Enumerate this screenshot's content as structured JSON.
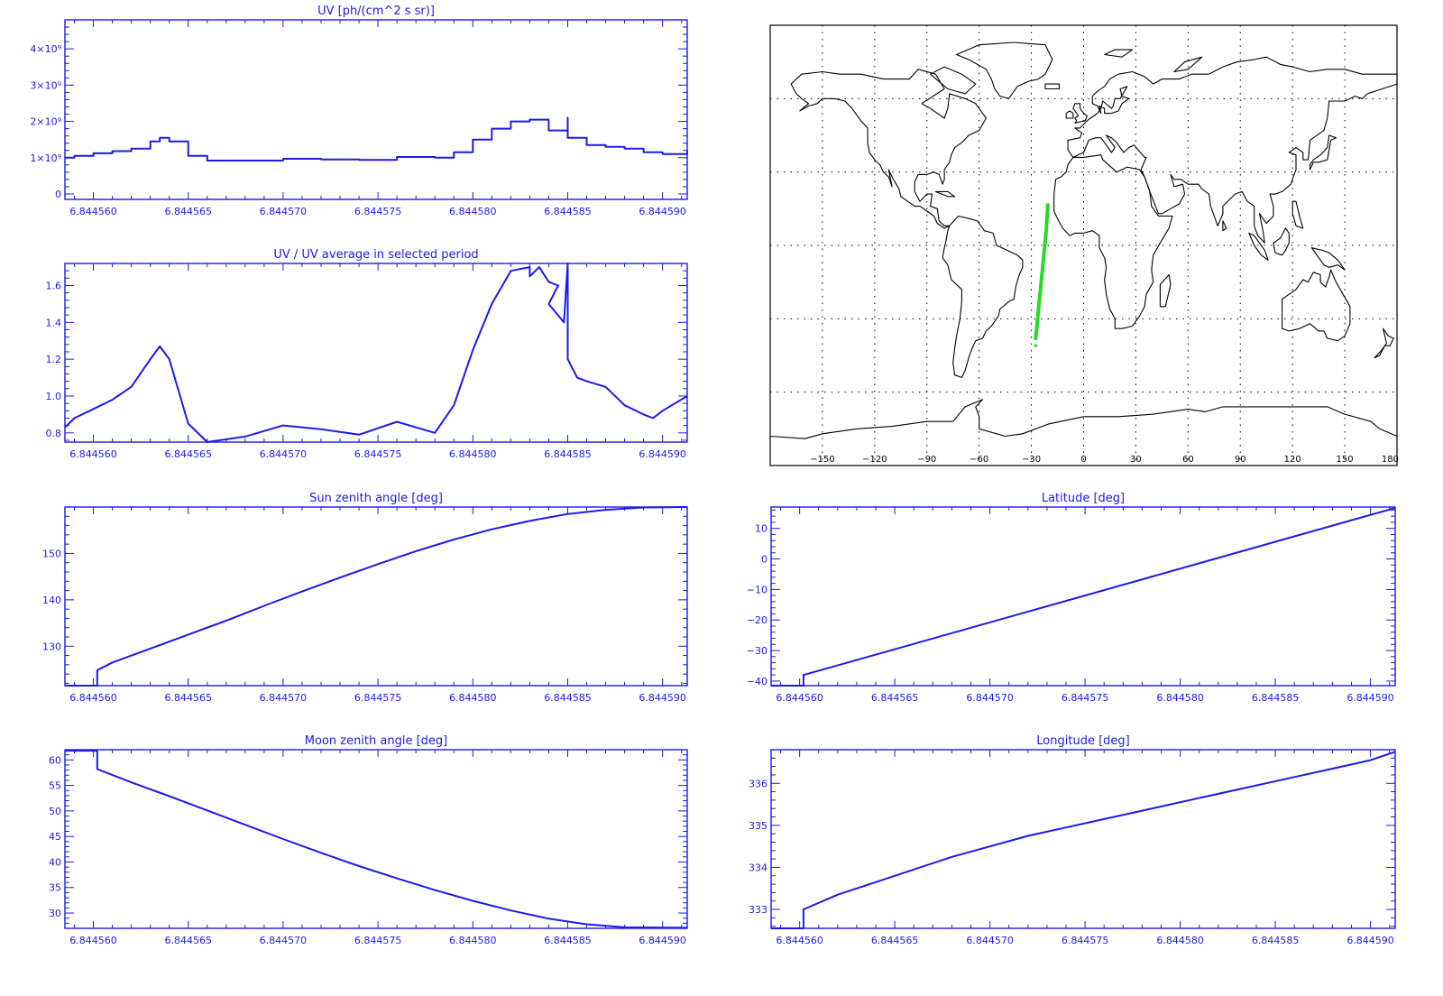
{
  "colors": {
    "plot": "#1a1aee",
    "map_lines": "#000000",
    "track": "#22dd22",
    "background": "#ffffff"
  },
  "chart_data": [
    {
      "id": "uv",
      "type": "line",
      "title": "UV [ph/(cm^2 s sr)]",
      "xlabel": "",
      "ylabel": "",
      "xlim": [
        6.8445585,
        6.8445913
      ],
      "ylim": [
        -150000000.0,
        4800000000.0
      ],
      "xticks": [
        6.84456,
        6.844565,
        6.84457,
        6.844575,
        6.84458,
        6.844585,
        6.84459
      ],
      "xtick_labels": [
        "6.844560",
        "6.844565",
        "6.844570",
        "6.844575",
        "6.844580",
        "6.844585",
        "6.844590"
      ],
      "yticks": [
        0,
        1000000000.0,
        2000000000.0,
        3000000000.0,
        4000000000.0
      ],
      "ytick_labels": [
        "0",
        "1×10⁹",
        "2×10⁹",
        "3×10⁹",
        "4×10⁹"
      ],
      "step": true,
      "x": [
        6.8445585,
        6.844559,
        6.84456,
        6.844561,
        6.844562,
        6.844563,
        6.8445635,
        6.844564,
        6.844565,
        6.844566,
        6.844568,
        6.84457,
        6.844572,
        6.844574,
        6.844576,
        6.844578,
        6.844579,
        6.84458,
        6.844581,
        6.844582,
        6.844583,
        6.844584,
        6.844584,
        6.844585,
        6.844585,
        6.844586,
        6.844587,
        6.844588,
        6.844589,
        6.84459,
        6.8445913
      ],
      "values": [
        1000000000.0,
        1050000000.0,
        1120000000.0,
        1180000000.0,
        1250000000.0,
        1450000000.0,
        1550000000.0,
        1450000000.0,
        1050000000.0,
        920000000.0,
        920000000.0,
        970000000.0,
        950000000.0,
        940000000.0,
        1020000000.0,
        1000000000.0,
        1150000000.0,
        1500000000.0,
        1800000000.0,
        2000000000.0,
        2050000000.0,
        1900000000.0,
        1750000000.0,
        2100000000.0,
        1550000000.0,
        1350000000.0,
        1300000000.0,
        1250000000.0,
        1150000000.0,
        1100000000.0,
        1200000000.0
      ]
    },
    {
      "id": "uvratio",
      "type": "line",
      "title": "UV / UV average in selected period",
      "xlabel": "",
      "ylabel": "",
      "xlim": [
        6.8445585,
        6.8445913
      ],
      "ylim": [
        0.75,
        1.72
      ],
      "xticks": [
        6.84456,
        6.844565,
        6.84457,
        6.844575,
        6.84458,
        6.844585,
        6.84459
      ],
      "xtick_labels": [
        "6.844560",
        "6.844565",
        "6.844570",
        "6.844575",
        "6.844580",
        "6.844585",
        "6.844590"
      ],
      "yticks": [
        0.8,
        1.0,
        1.2,
        1.4,
        1.6
      ],
      "ytick_labels": [
        "0.8",
        "1.0",
        "1.2",
        "1.4",
        "1.6"
      ],
      "step": false,
      "x": [
        6.8445585,
        6.844559,
        6.84456,
        6.844561,
        6.844562,
        6.844563,
        6.8445635,
        6.844564,
        6.844565,
        6.844566,
        6.844568,
        6.84457,
        6.844572,
        6.844574,
        6.844576,
        6.844578,
        6.844579,
        6.84458,
        6.844581,
        6.844582,
        6.844583,
        6.844583,
        6.8445835,
        6.844584,
        6.8445845,
        6.844584,
        6.8445848,
        6.844585,
        6.844585,
        6.844585,
        6.8445855,
        6.844586,
        6.844587,
        6.844588,
        6.844589,
        6.8445895,
        6.84459,
        6.8445913
      ],
      "values": [
        0.83,
        0.88,
        0.93,
        0.98,
        1.05,
        1.2,
        1.27,
        1.2,
        0.85,
        0.75,
        0.78,
        0.84,
        0.82,
        0.79,
        0.86,
        0.8,
        0.95,
        1.25,
        1.5,
        1.68,
        1.7,
        1.65,
        1.7,
        1.62,
        1.6,
        1.5,
        1.4,
        1.72,
        1.3,
        1.2,
        1.1,
        1.08,
        1.05,
        0.95,
        0.9,
        0.88,
        0.92,
        1.0
      ]
    },
    {
      "id": "sza",
      "type": "line",
      "title": "Sun zenith angle [deg]",
      "xlabel": "",
      "ylabel": "",
      "xlim": [
        6.8445585,
        6.8445913
      ],
      "ylim": [
        121.5,
        160
      ],
      "xticks": [
        6.84456,
        6.844565,
        6.84457,
        6.844575,
        6.84458,
        6.844585,
        6.84459
      ],
      "xtick_labels": [
        "6.844560",
        "6.844565",
        "6.844570",
        "6.844575",
        "6.844580",
        "6.844585",
        "6.844590"
      ],
      "yticks": [
        130,
        140,
        150
      ],
      "ytick_labels": [
        "130",
        "140",
        "150"
      ],
      "step": false,
      "x": [
        6.8445585,
        6.8445602,
        6.8445602,
        6.844561,
        6.844563,
        6.844565,
        6.844567,
        6.844569,
        6.844571,
        6.844573,
        6.844575,
        6.844577,
        6.844579,
        6.844581,
        6.844583,
        6.844585,
        6.844587,
        6.844589,
        6.8445913
      ],
      "values": [
        121.5,
        121.5,
        124.8,
        126.5,
        129.5,
        132.5,
        135.5,
        138.7,
        141.8,
        144.8,
        147.7,
        150.5,
        153.0,
        155.2,
        157.0,
        158.5,
        159.4,
        159.9,
        160.0
      ]
    },
    {
      "id": "lat",
      "type": "line",
      "title": "Latitude [deg]",
      "xlabel": "",
      "ylabel": "",
      "xlim": [
        6.8445585,
        6.8445913
      ],
      "ylim": [
        -41.5,
        17
      ],
      "xticks": [
        6.84456,
        6.844565,
        6.84457,
        6.844575,
        6.84458,
        6.844585,
        6.84459
      ],
      "xtick_labels": [
        "6.844560",
        "6.844565",
        "6.844570",
        "6.844575",
        "6.844580",
        "6.844585",
        "6.844590"
      ],
      "yticks": [
        -40,
        -30,
        -20,
        -10,
        0,
        10
      ],
      "ytick_labels": [
        "−40",
        "−30",
        "−20",
        "−10",
        "0",
        "10"
      ],
      "step": false,
      "x": [
        6.8445585,
        6.8445602,
        6.8445602,
        6.8445913
      ],
      "values": [
        -41.5,
        -41.5,
        -38.0,
        16.7
      ]
    },
    {
      "id": "mza",
      "type": "line",
      "title": "Moon zenith angle [deg]",
      "xlabel": "",
      "ylabel": "",
      "xlim": [
        6.8445585,
        6.8445913
      ],
      "ylim": [
        27,
        62
      ],
      "xticks": [
        6.84456,
        6.844565,
        6.84457,
        6.844575,
        6.84458,
        6.844585,
        6.84459
      ],
      "xtick_labels": [
        "6.844560",
        "6.844565",
        "6.844570",
        "6.844575",
        "6.844580",
        "6.844585",
        "6.844590"
      ],
      "yticks": [
        30,
        35,
        40,
        45,
        50,
        55,
        60
      ],
      "ytick_labels": [
        "30",
        "35",
        "40",
        "45",
        "50",
        "55",
        "60"
      ],
      "step": false,
      "x": [
        6.8445585,
        6.8445602,
        6.8445602,
        6.844562,
        6.844564,
        6.844566,
        6.844568,
        6.84457,
        6.844572,
        6.844574,
        6.844576,
        6.844578,
        6.84458,
        6.844582,
        6.844584,
        6.844586,
        6.844588,
        6.8445913
      ],
      "values": [
        61.8,
        61.8,
        58.2,
        55.6,
        52.9,
        50.1,
        47.3,
        44.5,
        41.8,
        39.2,
        36.8,
        34.5,
        32.4,
        30.5,
        28.9,
        27.8,
        27.2,
        27.1
      ]
    },
    {
      "id": "lon",
      "type": "line",
      "title": "Longitude [deg]",
      "xlabel": "",
      "ylabel": "",
      "xlim": [
        6.8445585,
        6.8445913
      ],
      "ylim": [
        332.55,
        336.8
      ],
      "xticks": [
        6.84456,
        6.844565,
        6.84457,
        6.844575,
        6.84458,
        6.844585,
        6.84459
      ],
      "xtick_labels": [
        "6.844560",
        "6.844565",
        "6.844570",
        "6.844575",
        "6.844580",
        "6.844585",
        "6.844590"
      ],
      "yticks": [
        333,
        334,
        335,
        336
      ],
      "ytick_labels": [
        "333",
        "334",
        "335",
        "336"
      ],
      "step": false,
      "x": [
        6.8445585,
        6.8445602,
        6.8445602,
        6.844562,
        6.844564,
        6.844566,
        6.844568,
        6.84457,
        6.844572,
        6.844574,
        6.844576,
        6.844578,
        6.84458,
        6.844582,
        6.844584,
        6.844586,
        6.844588,
        6.84459,
        6.8445913
      ],
      "values": [
        332.55,
        332.55,
        333.0,
        333.35,
        333.65,
        333.95,
        334.25,
        334.5,
        334.75,
        334.95,
        335.15,
        335.35,
        335.55,
        335.75,
        335.95,
        336.15,
        336.35,
        336.55,
        336.75
      ]
    },
    {
      "id": "map",
      "type": "scatter",
      "title": "",
      "xlabel": "",
      "ylabel": "",
      "xlim": [
        -180,
        180
      ],
      "ylim": [
        -90,
        90
      ],
      "xticks": [
        -150,
        -120,
        -90,
        -60,
        -30,
        0,
        30,
        60,
        90,
        120,
        150,
        180
      ],
      "xtick_labels": [
        "−150",
        "−120",
        "−90",
        "−60",
        "−30",
        "0",
        "30",
        "60",
        "90",
        "120",
        "150",
        "180"
      ],
      "grid": true,
      "track_lon": [
        -27.5,
        -26.0,
        -24.5,
        -23.0,
        -21.5,
        -20.5
      ],
      "track_lat": [
        -38,
        -27,
        -16,
        -5,
        6,
        16.5
      ]
    }
  ]
}
